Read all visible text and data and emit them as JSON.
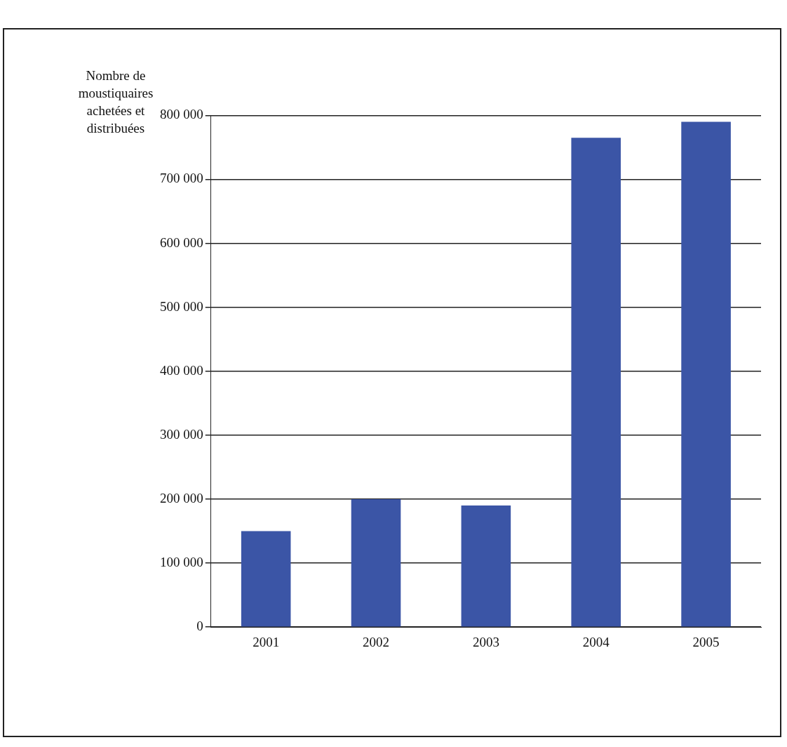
{
  "chart_data": {
    "type": "bar",
    "ylabel": "Nombre de moustiquaires achetées et distribuées",
    "categories": [
      "2001",
      "2002",
      "2003",
      "2004",
      "2005"
    ],
    "values": [
      150000,
      200000,
      190000,
      765000,
      790000
    ],
    "color": "#3b55a6",
    "ylim": [
      0,
      800000
    ],
    "yticks": [
      {
        "value": 0,
        "label": "0"
      },
      {
        "value": 100000,
        "label": "100 000"
      },
      {
        "value": 200000,
        "label": "200 000"
      },
      {
        "value": 300000,
        "label": "300 000"
      },
      {
        "value": 400000,
        "label": "400 000"
      },
      {
        "value": 500000,
        "label": "500 000"
      },
      {
        "value": 600000,
        "label": "600 000"
      },
      {
        "value": 700000,
        "label": "700 000"
      },
      {
        "value": 800000,
        "label": "800 000"
      }
    ],
    "grid": "y",
    "legend": false
  }
}
